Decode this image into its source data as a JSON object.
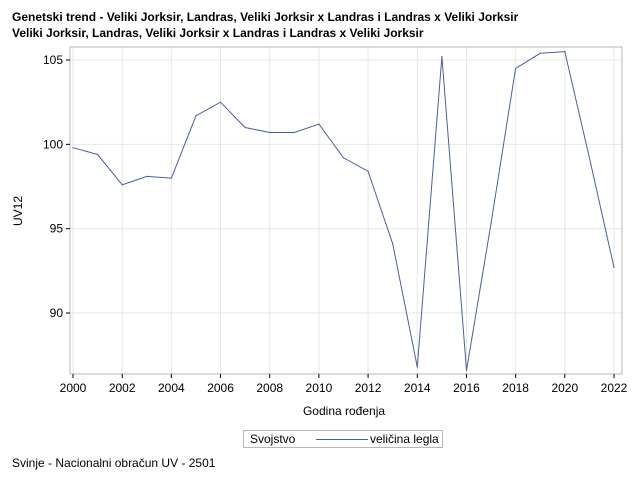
{
  "titles": {
    "line1": "Genetski trend - Veliki Jorksir, Landras, Veliki Jorksir x Landras i Landras x Veliki Jorksir",
    "line2": "Veliki Jorksir, Landras, Veliki Jorksir x Landras i Landras x Veliki Jorksir"
  },
  "legend": {
    "title": "Svojstvo",
    "series_label": "veličina legla"
  },
  "footer": "Svinje - Nacionalni obračun UV - 2501",
  "colors": {
    "series": "#4a5fa0",
    "grid": "#e6e6e6",
    "frame": "#b7b7b7"
  },
  "chart_data": {
    "type": "line",
    "xlabel": "Godina rođenja",
    "ylabel": "UV12",
    "xlim": [
      2000,
      2022
    ],
    "ylim": [
      86.6,
      105.8
    ],
    "xticks": [
      2000,
      2002,
      2004,
      2006,
      2008,
      2010,
      2012,
      2014,
      2016,
      2018,
      2020,
      2022
    ],
    "yticks": [
      90,
      95,
      100,
      105
    ],
    "grid": true,
    "legend_position": "bottom",
    "series": [
      {
        "name": "veličina legla",
        "x": [
          2000,
          2001,
          2002,
          2003,
          2004,
          2005,
          2006,
          2007,
          2008,
          2009,
          2010,
          2011,
          2012,
          2013,
          2014,
          2015,
          2016,
          2017,
          2018,
          2019,
          2020,
          2021,
          2022
        ],
        "y": [
          99.8,
          99.4,
          97.6,
          98.1,
          98.0,
          101.7,
          102.5,
          101.0,
          100.7,
          100.7,
          101.2,
          99.2,
          98.4,
          94.1,
          86.8,
          105.2,
          86.6,
          95.3,
          104.5,
          105.4,
          105.5,
          99.2,
          92.7
        ]
      }
    ]
  }
}
